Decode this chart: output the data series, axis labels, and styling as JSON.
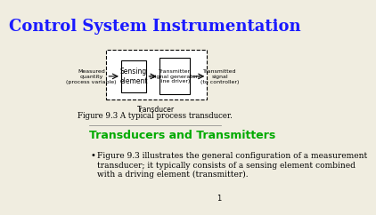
{
  "title": "Control System Instrumentation",
  "title_color": "#1a1aff",
  "title_fontsize": 13,
  "bg_color": "#f0ede0",
  "figure_caption": "Figure 9.3 A typical process transducer.",
  "section_heading": "Transducers and Transmitters",
  "section_color": "#00aa00",
  "section_fontsize": 9,
  "bullet_text": "Figure 9.3 illustrates the general configuration of a measurement\ntransducer; it typically consists of a sensing element combined\nwith a driving element (transmitter).",
  "bullet_fontsize": 6.5,
  "page_number": "1",
  "box1_label": "Sensing\nelement",
  "box2_label": "Transmitter\n(signal generator/\nline driver)",
  "left_label": "Measured\nquantity\n(process variable)",
  "right_label": "Transmitted\nsignal\n(to controller)",
  "transducer_label": "Transducer"
}
